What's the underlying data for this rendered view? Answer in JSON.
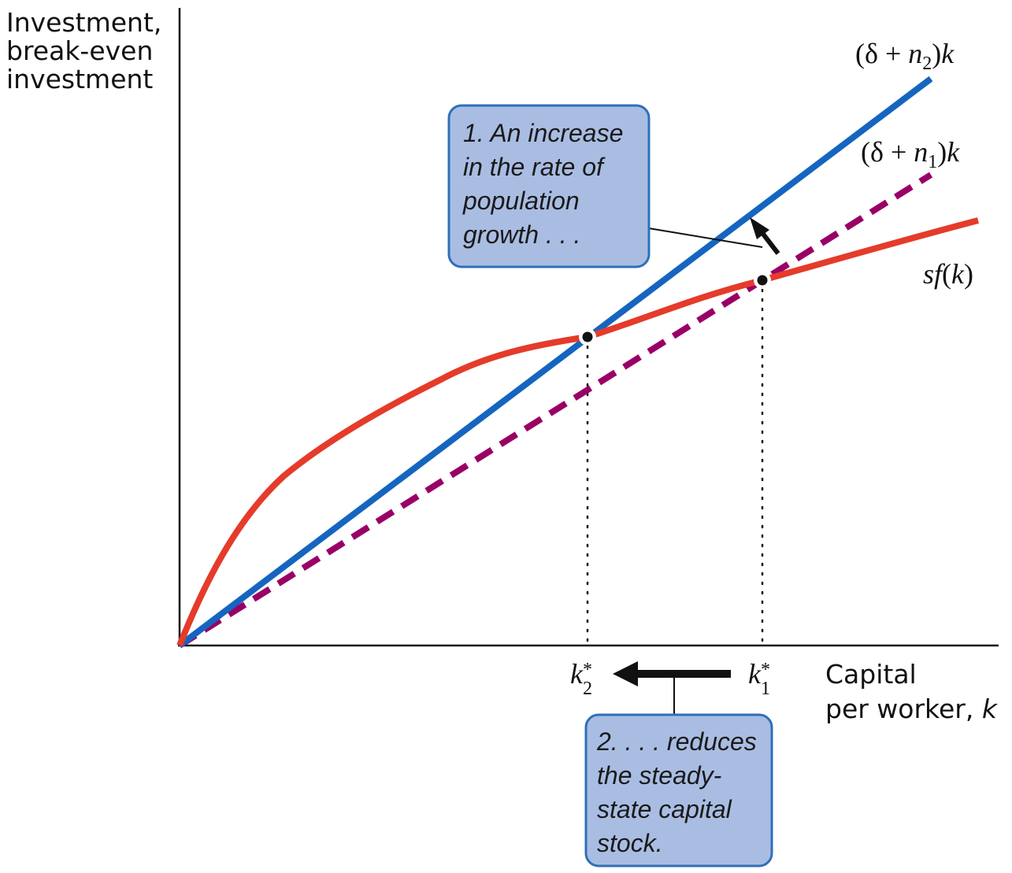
{
  "y_axis_title": [
    "Investment,",
    "break-even",
    "investment"
  ],
  "x_axis_title": [
    "Capital",
    "per worker, ",
    "k"
  ],
  "labels": {
    "line_n2": {
      "open": "(δ + ",
      "var": "n",
      "sub": "2",
      "close": ")",
      "k": "k"
    },
    "line_n1": {
      "open": "(δ + ",
      "var": "n",
      "sub": "1",
      "close": ")",
      "k": "k"
    },
    "sf": {
      "s": "s",
      "f": "f",
      "open": "(",
      "k": "k",
      "close": ")"
    },
    "k2": {
      "k": "k",
      "star": "*",
      "sub": "2"
    },
    "k1": {
      "k": "k",
      "star": "*",
      "sub": "1"
    }
  },
  "callout_1": [
    "1. An increase",
    "in the rate of",
    "population",
    "growth . . ."
  ],
  "callout_2": [
    "2. . . . reduces",
    "the steady-",
    "state capital",
    "stock."
  ],
  "colors": {
    "blue_line": "#1565c0",
    "dashed_line": "#990066",
    "red_curve": "#e53b2a",
    "callout_fill": "#a9bde3",
    "callout_stroke": "#2f6fb8"
  }
}
